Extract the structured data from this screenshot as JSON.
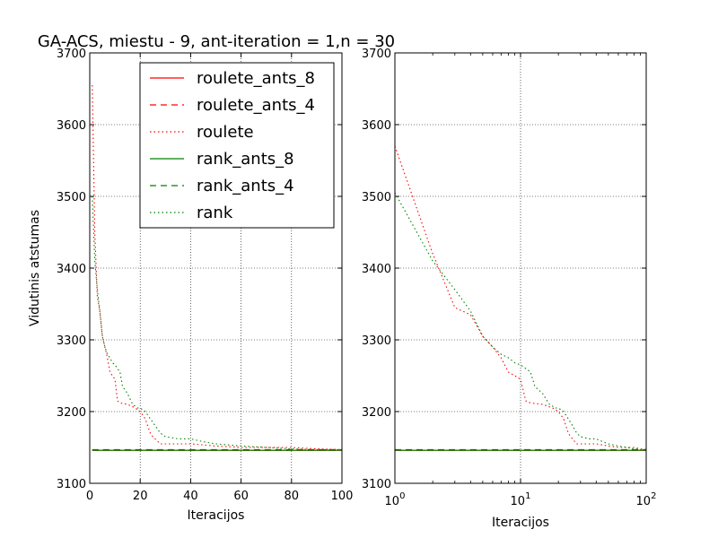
{
  "chart_data": [
    {
      "type": "line",
      "title": "GA-ACS, miestu - 9, ant-iteration = 1,n = 30",
      "xlabel": "Iteracijos",
      "ylabel": "Vidutinis atstumas",
      "xscale": "linear",
      "xlim": [
        0,
        100
      ],
      "ylim": [
        3100,
        3700
      ],
      "xticks": [
        "0",
        "20",
        "40",
        "60",
        "80",
        "100"
      ],
      "yticks": [
        "3100",
        "3200",
        "3300",
        "3400",
        "3500",
        "3600",
        "3700"
      ],
      "grid": true,
      "legend": {
        "placement": "upper-right",
        "labels": [
          "roulete_ants_8",
          "roulete_ants_4",
          "roulete",
          "rank_ants_8",
          "rank_ants_4",
          "rank"
        ]
      },
      "series": [
        {
          "name": "roulete_ants_8",
          "color": "#ff0000",
          "dash": "solid",
          "x": [
            1,
            100
          ],
          "y": [
            3146,
            3146
          ]
        },
        {
          "name": "roulete_ants_4",
          "color": "#ff0000",
          "dash": "dashed",
          "x": [
            1,
            100
          ],
          "y": [
            3146,
            3146
          ]
        },
        {
          "name": "roulete",
          "color": "#ff0000",
          "dash": "dotted",
          "x": [
            1,
            2,
            3,
            4,
            5,
            6,
            7,
            8,
            9,
            10,
            11,
            12,
            15,
            18,
            20,
            22,
            24,
            25,
            28,
            30,
            40,
            50,
            60,
            70,
            80,
            90,
            100
          ],
          "y": [
            3655,
            3450,
            3360,
            3340,
            3305,
            3290,
            3275,
            3255,
            3250,
            3245,
            3215,
            3212,
            3210,
            3205,
            3200,
            3190,
            3170,
            3165,
            3155,
            3155,
            3155,
            3152,
            3150,
            3150,
            3150,
            3148,
            3147
          ]
        },
        {
          "name": "rank_ants_8",
          "color": "#008000",
          "dash": "solid",
          "x": [
            1,
            100
          ],
          "y": [
            3146,
            3146
          ]
        },
        {
          "name": "rank_ants_4",
          "color": "#008000",
          "dash": "dashed",
          "x": [
            1,
            100
          ],
          "y": [
            3147,
            3147
          ]
        },
        {
          "name": "rank",
          "color": "#008000",
          "dash": "dotted",
          "x": [
            1,
            2,
            3,
            4,
            5,
            6,
            7,
            8,
            9,
            10,
            11,
            12,
            13,
            15,
            17,
            19,
            20,
            22,
            25,
            28,
            30,
            35,
            40,
            45,
            50,
            60,
            70,
            80,
            90,
            100
          ],
          "y": [
            3500,
            3410,
            3370,
            3340,
            3305,
            3290,
            3280,
            3275,
            3268,
            3265,
            3260,
            3255,
            3235,
            3225,
            3210,
            3205,
            3205,
            3200,
            3185,
            3170,
            3165,
            3162,
            3162,
            3158,
            3155,
            3152,
            3150,
            3148,
            3147,
            3147
          ]
        }
      ]
    },
    {
      "type": "line",
      "title": "",
      "xlabel": "Iteracijos",
      "ylabel": "",
      "xscale": "log",
      "xlim": [
        1,
        100
      ],
      "ylim": [
        3100,
        3700
      ],
      "xticks": [
        {
          "base": "10",
          "exp": "0"
        },
        {
          "base": "10",
          "exp": "1"
        },
        {
          "base": "10",
          "exp": "2"
        }
      ],
      "yticks": [
        "3100",
        "3200",
        "3300",
        "3400",
        "3500",
        "3600",
        "3700"
      ],
      "grid": true,
      "series": [
        {
          "name": "roulete_ants_8",
          "color": "#ff0000",
          "dash": "solid",
          "x": [
            1,
            100
          ],
          "y": [
            3146,
            3146
          ]
        },
        {
          "name": "roulete_ants_4",
          "color": "#ff0000",
          "dash": "dashed",
          "x": [
            1,
            100
          ],
          "y": [
            3146,
            3146
          ]
        },
        {
          "name": "roulete",
          "color": "#ff0000",
          "dash": "dotted",
          "x": [
            1,
            2,
            3,
            4,
            5,
            6,
            7,
            8,
            9,
            10,
            11,
            12,
            15,
            18,
            20,
            22,
            24,
            25,
            28,
            30,
            40,
            50,
            60,
            70,
            80,
            90,
            100
          ],
          "y": [
            3570,
            3420,
            3345,
            3335,
            3305,
            3290,
            3275,
            3255,
            3250,
            3245,
            3215,
            3212,
            3210,
            3205,
            3200,
            3190,
            3170,
            3165,
            3155,
            3155,
            3155,
            3152,
            3150,
            3150,
            3150,
            3148,
            3147
          ]
        },
        {
          "name": "rank_ants_8",
          "color": "#008000",
          "dash": "solid",
          "x": [
            1,
            100
          ],
          "y": [
            3146,
            3146
          ]
        },
        {
          "name": "rank_ants_4",
          "color": "#008000",
          "dash": "dashed",
          "x": [
            1,
            100
          ],
          "y": [
            3147,
            3147
          ]
        },
        {
          "name": "rank",
          "color": "#008000",
          "dash": "dotted",
          "x": [
            1,
            2,
            3,
            4,
            5,
            6,
            7,
            8,
            9,
            10,
            11,
            12,
            13,
            15,
            17,
            19,
            20,
            22,
            25,
            28,
            30,
            35,
            40,
            45,
            50,
            60,
            70,
            80,
            90,
            100
          ],
          "y": [
            3505,
            3410,
            3370,
            3340,
            3305,
            3290,
            3280,
            3275,
            3268,
            3265,
            3260,
            3255,
            3235,
            3225,
            3210,
            3205,
            3205,
            3200,
            3185,
            3170,
            3165,
            3162,
            3162,
            3158,
            3155,
            3152,
            3150,
            3148,
            3147,
            3147
          ]
        }
      ]
    }
  ]
}
